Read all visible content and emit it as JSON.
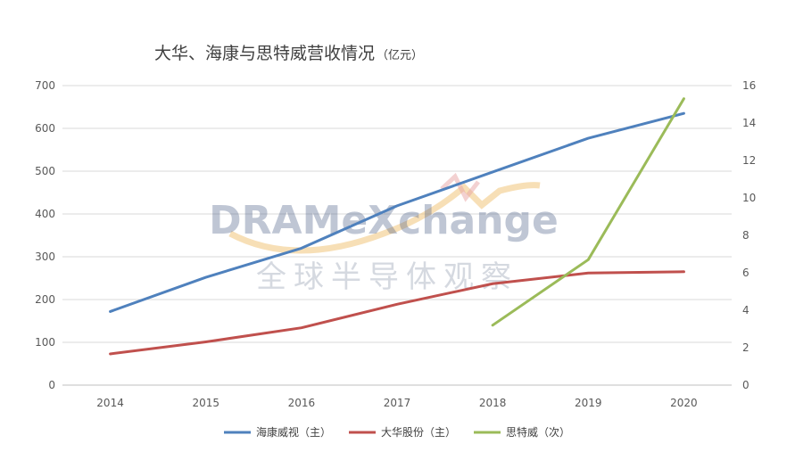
{
  "chart_data": {
    "type": "line",
    "title": "大华、海康与思特威营收情况",
    "title_unit": "（亿元）",
    "categories": [
      "2014",
      "2015",
      "2016",
      "2017",
      "2018",
      "2019",
      "2020"
    ],
    "y_left": {
      "ticks": [
        "0",
        "100",
        "200",
        "300",
        "400",
        "500",
        "600",
        "700"
      ],
      "lim": [
        0,
        700
      ]
    },
    "y_right": {
      "ticks": [
        "0",
        "2",
        "4",
        "6",
        "8",
        "10",
        "12",
        "14",
        "16"
      ],
      "lim": [
        0,
        16
      ]
    },
    "grid": true,
    "legend_position": "bottom",
    "series": [
      {
        "name": "海康威视（主）",
        "axis": "left",
        "color": "#4f81bd",
        "values": [
          172,
          252,
          320,
          419,
          498,
          577,
          635
        ]
      },
      {
        "name": "大华股份（主）",
        "axis": "left",
        "color": "#c0504d",
        "values": [
          73,
          101,
          134,
          189,
          237,
          262,
          265
        ]
      },
      {
        "name": "思特威（次）",
        "axis": "right",
        "color": "#9bbb59",
        "values": [
          null,
          null,
          null,
          null,
          3.2,
          6.7,
          15.3
        ]
      }
    ]
  },
  "watermark": {
    "brand": "DRAMeXchange",
    "tagline": "全球半导体观察"
  }
}
